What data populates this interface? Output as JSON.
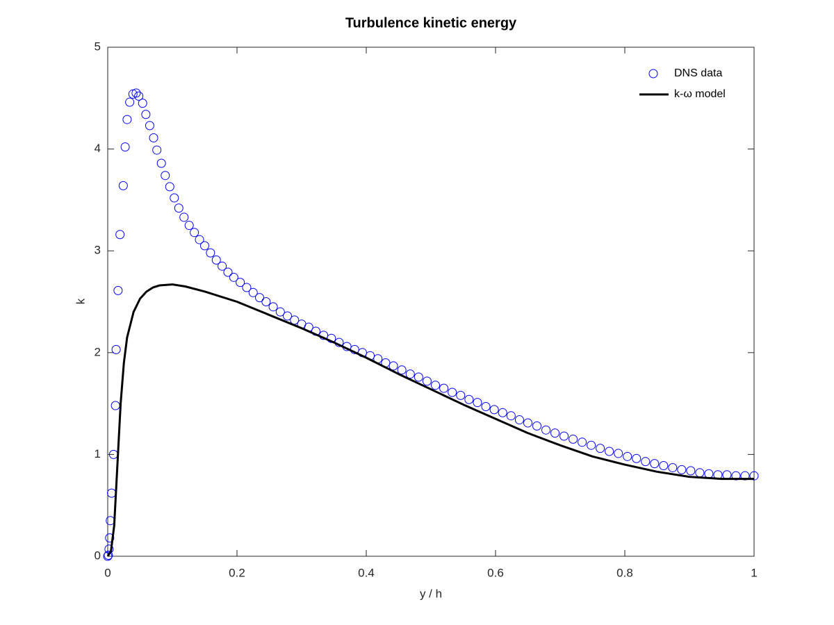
{
  "chart_data": {
    "type": "line",
    "title": "Turbulence kinetic energy",
    "xlabel": "y / h",
    "ylabel": "k",
    "xlim": [
      0,
      1
    ],
    "ylim": [
      0,
      5
    ],
    "xticks": [
      0,
      0.2,
      0.4,
      0.6,
      0.8,
      1
    ],
    "yticks": [
      0,
      1,
      2,
      3,
      4,
      5
    ],
    "grid": false,
    "legend": "upper right",
    "series": [
      {
        "name": "DNS data",
        "color": "#0000ff",
        "mode": "markers",
        "x": [
          0,
          0.001,
          0.002,
          0.003,
          0.004,
          0.006,
          0.009,
          0.012,
          0.013,
          0.016,
          0.019,
          0.024,
          0.027,
          0.03,
          0.034,
          0.039,
          0.044,
          0.048,
          0.054,
          0.059,
          0.065,
          0.071,
          0.076,
          0.083,
          0.089,
          0.096,
          0.103,
          0.11,
          0.118,
          0.126,
          0.134,
          0.142,
          0.15,
          0.159,
          0.168,
          0.177,
          0.186,
          0.195,
          0.205,
          0.215,
          0.225,
          0.235,
          0.245,
          0.256,
          0.267,
          0.278,
          0.289,
          0.3,
          0.311,
          0.322,
          0.334,
          0.346,
          0.358,
          0.37,
          0.382,
          0.394,
          0.406,
          0.418,
          0.43,
          0.442,
          0.455,
          0.468,
          0.481,
          0.494,
          0.507,
          0.52,
          0.533,
          0.546,
          0.559,
          0.572,
          0.585,
          0.598,
          0.611,
          0.624,
          0.637,
          0.65,
          0.664,
          0.678,
          0.692,
          0.706,
          0.72,
          0.734,
          0.748,
          0.762,
          0.776,
          0.79,
          0.804,
          0.818,
          0.832,
          0.846,
          0.86,
          0.874,
          0.888,
          0.902,
          0.916,
          0.93,
          0.944,
          0.958,
          0.972,
          0.986,
          1.0
        ],
        "values": [
          0,
          0.01,
          0.07,
          0.18,
          0.35,
          0.62,
          1.0,
          1.48,
          2.03,
          2.61,
          3.16,
          3.64,
          4.02,
          4.29,
          4.46,
          4.54,
          4.55,
          4.52,
          4.45,
          4.34,
          4.23,
          4.11,
          3.99,
          3.86,
          3.74,
          3.63,
          3.52,
          3.42,
          3.33,
          3.25,
          3.18,
          3.11,
          3.05,
          2.98,
          2.91,
          2.85,
          2.79,
          2.74,
          2.69,
          2.64,
          2.59,
          2.54,
          2.5,
          2.45,
          2.4,
          2.36,
          2.32,
          2.28,
          2.25,
          2.21,
          2.17,
          2.14,
          2.1,
          2.06,
          2.03,
          2.0,
          1.97,
          1.94,
          1.9,
          1.87,
          1.83,
          1.79,
          1.76,
          1.72,
          1.68,
          1.65,
          1.61,
          1.58,
          1.54,
          1.51,
          1.47,
          1.44,
          1.41,
          1.38,
          1.34,
          1.31,
          1.28,
          1.24,
          1.21,
          1.18,
          1.15,
          1.12,
          1.09,
          1.06,
          1.03,
          1.01,
          0.98,
          0.96,
          0.93,
          0.91,
          0.89,
          0.87,
          0.85,
          0.84,
          0.82,
          0.81,
          0.8,
          0.8,
          0.79,
          0.79,
          0.79
        ]
      },
      {
        "name": "k-ω model",
        "color": "#000000",
        "mode": "line",
        "x": [
          0,
          0.005,
          0.01,
          0.015,
          0.02,
          0.025,
          0.03,
          0.04,
          0.05,
          0.06,
          0.07,
          0.08,
          0.1,
          0.12,
          0.15,
          0.2,
          0.25,
          0.3,
          0.35,
          0.4,
          0.45,
          0.5,
          0.55,
          0.6,
          0.65,
          0.7,
          0.75,
          0.8,
          0.85,
          0.9,
          0.95,
          1.0
        ],
        "values": [
          0,
          0.05,
          0.3,
          0.9,
          1.5,
          1.9,
          2.15,
          2.4,
          2.53,
          2.6,
          2.64,
          2.66,
          2.67,
          2.65,
          2.6,
          2.5,
          2.37,
          2.24,
          2.1,
          1.95,
          1.79,
          1.64,
          1.49,
          1.35,
          1.21,
          1.09,
          0.98,
          0.9,
          0.83,
          0.78,
          0.76,
          0.76
        ]
      }
    ]
  }
}
